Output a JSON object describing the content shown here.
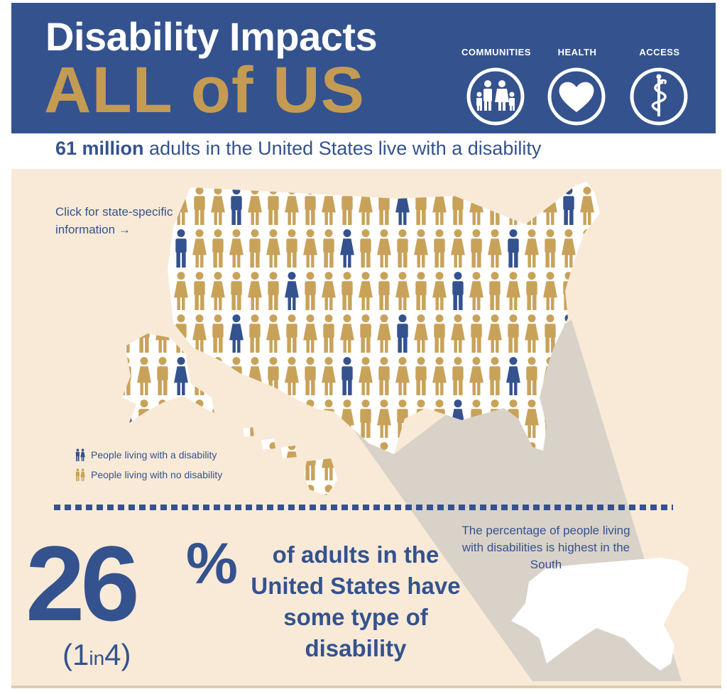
{
  "header": {
    "title_line1": "Disability Impacts",
    "title_line2": "ALL of US",
    "categories": [
      {
        "label": "COMMUNITIES",
        "icon": "family-icon"
      },
      {
        "label": "HEALTH",
        "icon": "heart-icon"
      },
      {
        "label": "ACCESS",
        "icon": "caduceus-icon"
      }
    ]
  },
  "subtitle": {
    "bold": "61 million",
    "rest": " adults in the United States live with a disability"
  },
  "map": {
    "link_text": "Click for state-specific information →",
    "legend": [
      {
        "label": "People living with a disability",
        "color": "#34528e"
      },
      {
        "label": "People living with no disability",
        "color": "#c9a25a"
      }
    ]
  },
  "stat": {
    "percent": "26",
    "percent_sign": "%",
    "ratio_open": "(1",
    "ratio_in": "in",
    "ratio_close": "4)",
    "description": "of adults in the United States have some type of disability"
  },
  "south": {
    "note": "The percentage of people living with disabilities is highest in the South"
  },
  "colors": {
    "navy": "#34528e",
    "gold": "#c49b53",
    "cream": "#f8ead7"
  }
}
